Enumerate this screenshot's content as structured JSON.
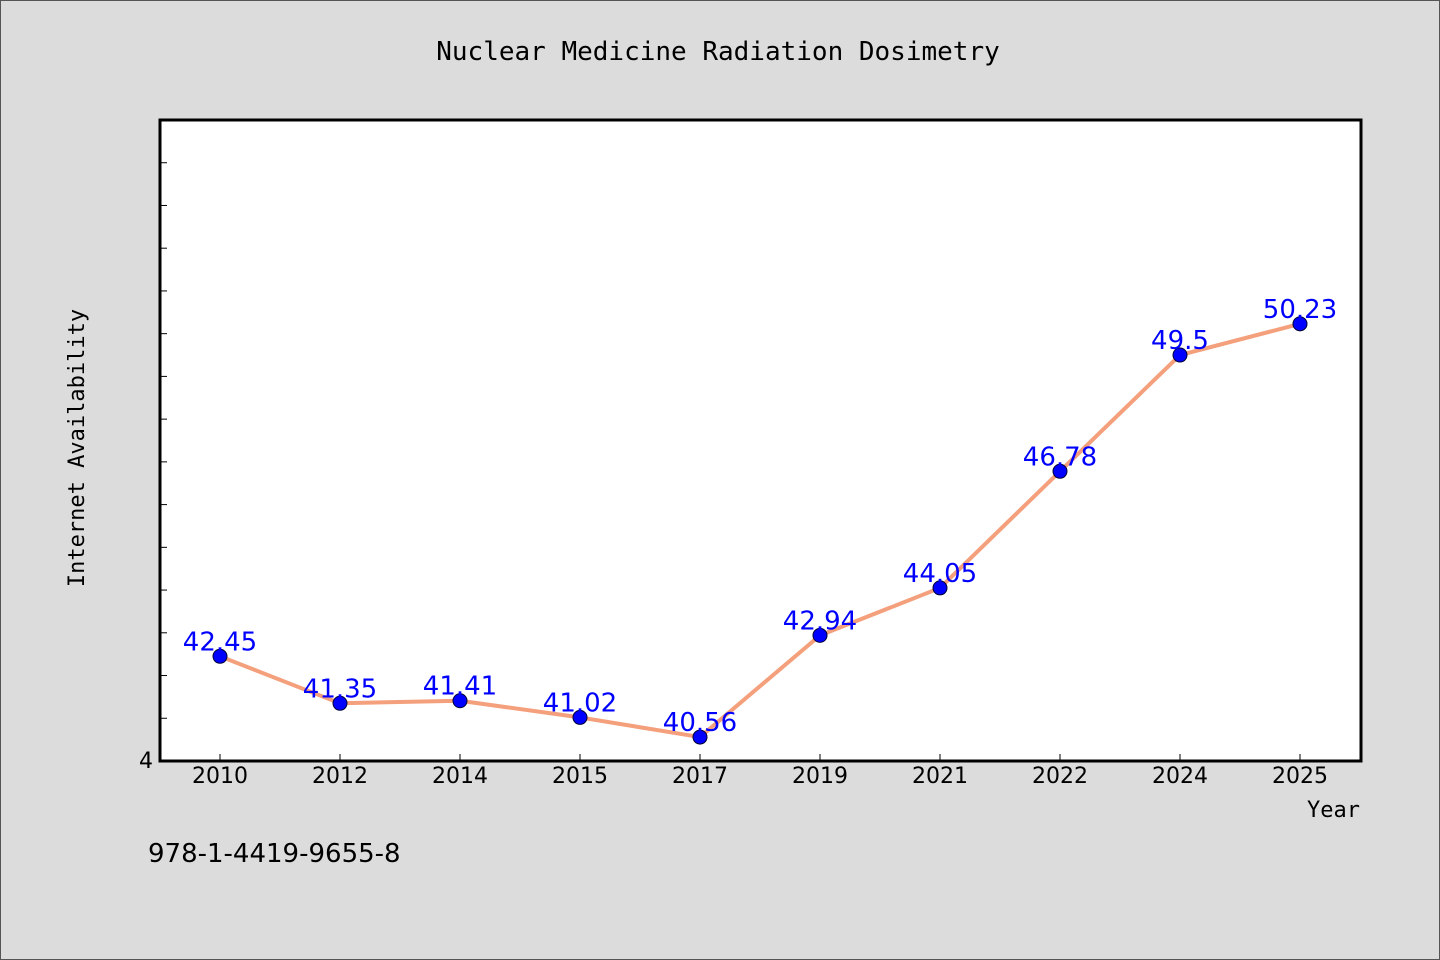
{
  "chart_data": {
    "type": "line",
    "title": "Nuclear Medicine Radiation Dosimetry",
    "xlabel": "Year",
    "ylabel": "Internet Availability",
    "categories": [
      "2010",
      "2012",
      "2014",
      "2015",
      "2017",
      "2019",
      "2021",
      "2022",
      "2024",
      "2025"
    ],
    "values": [
      42.45,
      41.35,
      41.41,
      41.02,
      40.56,
      42.94,
      44.05,
      46.78,
      49.5,
      50.23
    ],
    "y_tick_labels": [
      "4"
    ],
    "ylim": [
      40,
      55
    ],
    "grid": false,
    "line_color": "#f4a07c",
    "marker_color": "#0000ff",
    "label_color": "#0000ff"
  },
  "footer": {
    "isbn": "978-1-4419-9655-8"
  }
}
